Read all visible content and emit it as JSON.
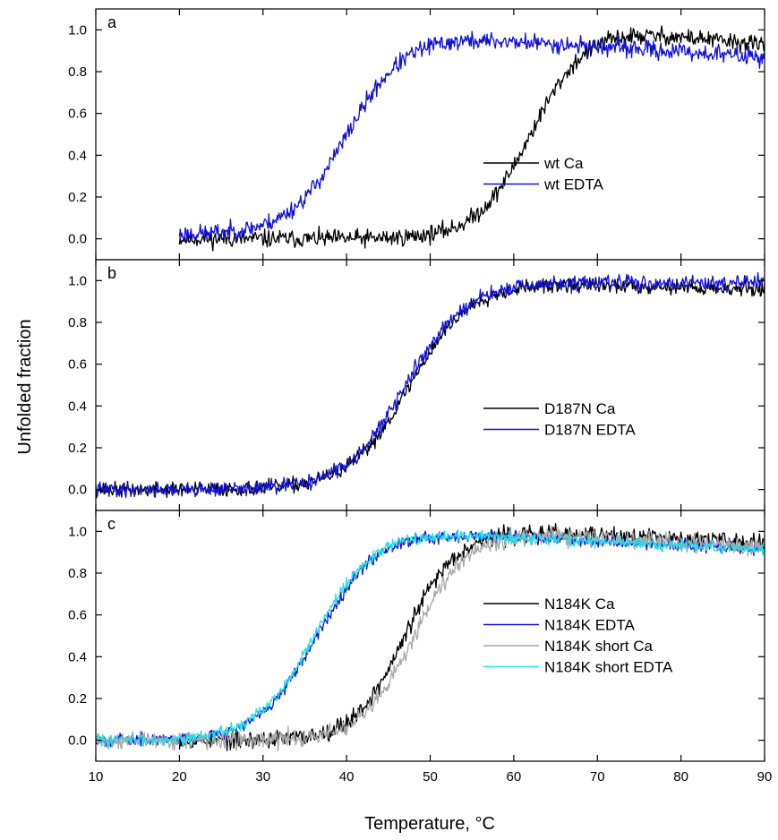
{
  "ylabel": "Unfolded fraction",
  "xlabel": "Temperature, °C",
  "colors": {
    "black": "#000000",
    "blue": "#1010d8",
    "grey": "#a8a8a8",
    "cyan": "#22e0e8"
  },
  "chart_data": [
    {
      "panel": "a",
      "type": "line",
      "xlim": [
        10,
        90
      ],
      "ylim": [
        -0.1,
        1.1
      ],
      "xticks": [
        10,
        20,
        30,
        40,
        50,
        60,
        70,
        80,
        90
      ],
      "yticks": [
        "0.0",
        "0.2",
        "0.4",
        "0.6",
        "0.8",
        "1.0"
      ],
      "legend": "right",
      "series": [
        {
          "name": "wt Ca",
          "color": "#000000",
          "x_range": [
            20,
            90
          ],
          "tm": 62,
          "width": 3.2,
          "base": 0.0,
          "top": 1.0,
          "top_slope": -0.004,
          "noise": 0.03,
          "seed": 11
        },
        {
          "name": "wt EDTA",
          "color": "#1010d8",
          "x_range": [
            20,
            90
          ],
          "tm": 40,
          "width": 3.4,
          "base": 0.02,
          "top": 0.97,
          "top_slope": -0.0025,
          "noise": 0.03,
          "seed": 23
        }
      ]
    },
    {
      "panel": "b",
      "type": "line",
      "xlim": [
        10,
        90
      ],
      "ylim": [
        -0.1,
        1.1
      ],
      "xticks": [
        10,
        20,
        30,
        40,
        50,
        60,
        70,
        80,
        90
      ],
      "yticks": [
        "0.0",
        "0.2",
        "0.4",
        "0.6",
        "0.8",
        "1.0"
      ],
      "legend": "right",
      "series": [
        {
          "name": "D187N Ca",
          "color": "#000000",
          "x_range": [
            10,
            90
          ],
          "tm": 47.5,
          "width": 3.6,
          "base": 0.0,
          "top": 0.99,
          "top_slope": -0.001,
          "noise": 0.025,
          "seed": 37
        },
        {
          "name": "D187N EDTA",
          "color": "#1010d8",
          "x_range": [
            10,
            90
          ],
          "tm": 47,
          "width": 3.6,
          "base": 0.0,
          "top": 0.99,
          "top_slope": 0.0,
          "noise": 0.025,
          "seed": 41
        }
      ]
    },
    {
      "panel": "c",
      "type": "line",
      "xlim": [
        10,
        90
      ],
      "ylim": [
        -0.1,
        1.1
      ],
      "xticks": [
        10,
        20,
        30,
        40,
        50,
        60,
        70,
        80,
        90
      ],
      "yticks": [
        "0.0",
        "0.2",
        "0.4",
        "0.6",
        "0.8",
        "1.0"
      ],
      "legend": "right",
      "series": [
        {
          "name": "N184K Ca",
          "color": "#000000",
          "x_range": [
            20,
            90
          ],
          "tm": 47,
          "width": 3.0,
          "base": 0.0,
          "top": 1.0,
          "top_slope": -0.0015,
          "noise": 0.03,
          "seed": 53
        },
        {
          "name": "N184K EDTA",
          "color": "#1010d8",
          "x_range": [
            10,
            90
          ],
          "tm": 36.5,
          "width": 3.5,
          "base": 0.0,
          "top": 1.0,
          "top_slope": -0.002,
          "noise": 0.02,
          "seed": 67
        },
        {
          "name": "N184K short Ca",
          "color": "#a8a8a8",
          "x_range": [
            10,
            90
          ],
          "tm": 48,
          "width": 3.0,
          "base": 0.0,
          "top": 0.99,
          "top_slope": -0.002,
          "noise": 0.03,
          "seed": 71
        },
        {
          "name": "N184K short EDTA",
          "color": "#22e0e8",
          "x_range": [
            10,
            90
          ],
          "tm": 36.2,
          "width": 3.5,
          "base": 0.0,
          "top": 1.0,
          "top_slope": -0.002,
          "noise": 0.02,
          "seed": 83
        }
      ]
    }
  ]
}
